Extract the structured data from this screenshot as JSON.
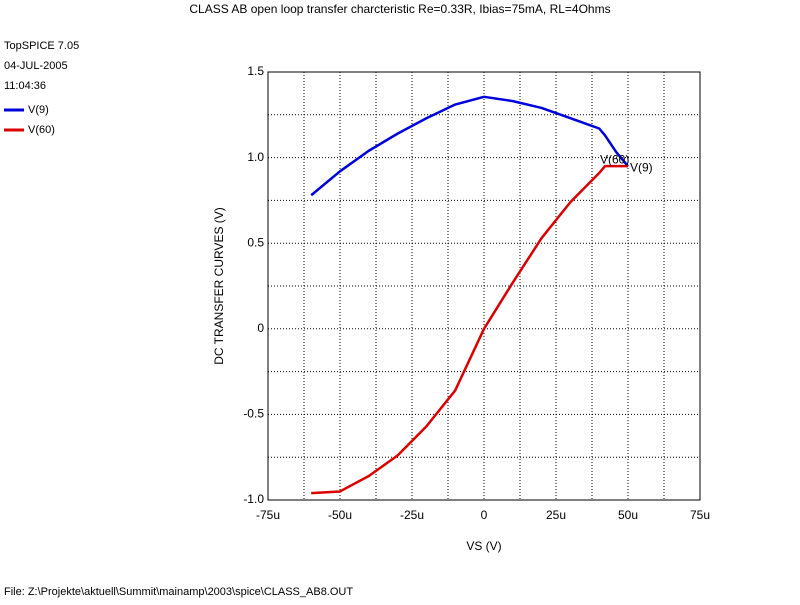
{
  "chart_data": {
    "type": "line",
    "title": "CLASS AB open loop transfer charcteristic Re=0.33R, Ibias=75mA, RL=4Ohms",
    "header_lines": [
      "TopSPICE 7.05",
      "04-JUL-2005",
      "11:04:36"
    ],
    "footer": "File: Z:\\Projekte\\aktuell\\Summit\\mainamp\\2003\\spice\\CLASS_AB8.OUT",
    "xlabel": "VS  (V)",
    "ylabel": "DC TRANSFER CURVES  (V)",
    "x": [
      -60,
      -50,
      -40,
      -30,
      -20,
      -10,
      0,
      10,
      20,
      30,
      40,
      42,
      46,
      50
    ],
    "series": [
      {
        "name": "V(9)",
        "color": "#0000dd",
        "values": [
          0.78,
          0.92,
          1.04,
          1.14,
          1.23,
          1.31,
          1.355,
          1.33,
          1.29,
          1.23,
          1.17,
          1.13,
          1.03,
          0.95
        ]
      },
      {
        "name": "V(60)",
        "color": "#dd0000",
        "values": [
          -0.96,
          -0.95,
          -0.86,
          -0.74,
          -0.57,
          -0.36,
          0,
          0.27,
          0.53,
          0.74,
          0.91,
          0.95,
          0.95,
          0.95
        ]
      }
    ],
    "xlim": [
      -75,
      75
    ],
    "xticks": [
      {
        "value": -75,
        "label": "-75u"
      },
      {
        "value": -50,
        "label": "-50u"
      },
      {
        "value": -25,
        "label": "-25u"
      },
      0,
      {
        "value": 25,
        "label": "25u"
      },
      {
        "value": 50,
        "label": "50u"
      },
      {
        "value": 75,
        "label": "75u"
      }
    ],
    "ylim": [
      -1,
      1.5
    ],
    "yticks": [
      1.5,
      {
        "value": 1,
        "label": "1.0"
      },
      0.5,
      0,
      -0.5,
      {
        "value": -1,
        "label": "-1.0"
      }
    ],
    "xminor": [
      -62.5,
      -37.5,
      -12.5,
      12.5,
      37.5,
      62.5
    ],
    "yminor": [
      1.25,
      0.75,
      0.25,
      -0.25,
      -0.75
    ],
    "grid": true
  }
}
